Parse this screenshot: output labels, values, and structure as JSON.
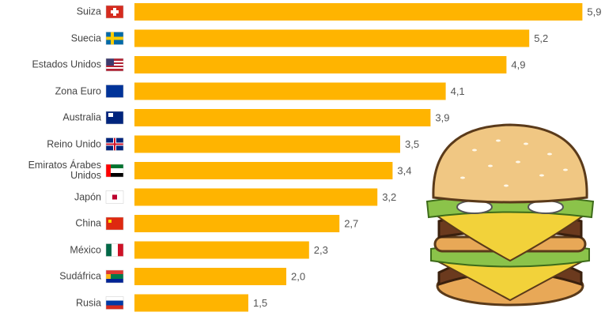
{
  "chart_data": {
    "type": "bar",
    "orientation": "horizontal",
    "color": "#ffb400",
    "categories": [
      "Suiza",
      "Suecia",
      "Estados Unidos",
      "Zona Euro",
      "Australia",
      "Reino Unido",
      "Emiratos Árabes Unidos",
      "Japón",
      "China",
      "México",
      "Sudáfrica",
      "Rusia"
    ],
    "values": [
      5.9,
      5.2,
      4.9,
      4.1,
      3.9,
      3.5,
      3.4,
      3.2,
      2.7,
      2.3,
      2.0,
      1.5
    ],
    "value_labels": [
      "5,9",
      "5,2",
      "4,9",
      "4,1",
      "3,9",
      "3,5",
      "3,4",
      "3,2",
      "2,7",
      "2,3",
      "2,0",
      "1,5"
    ]
  }
}
